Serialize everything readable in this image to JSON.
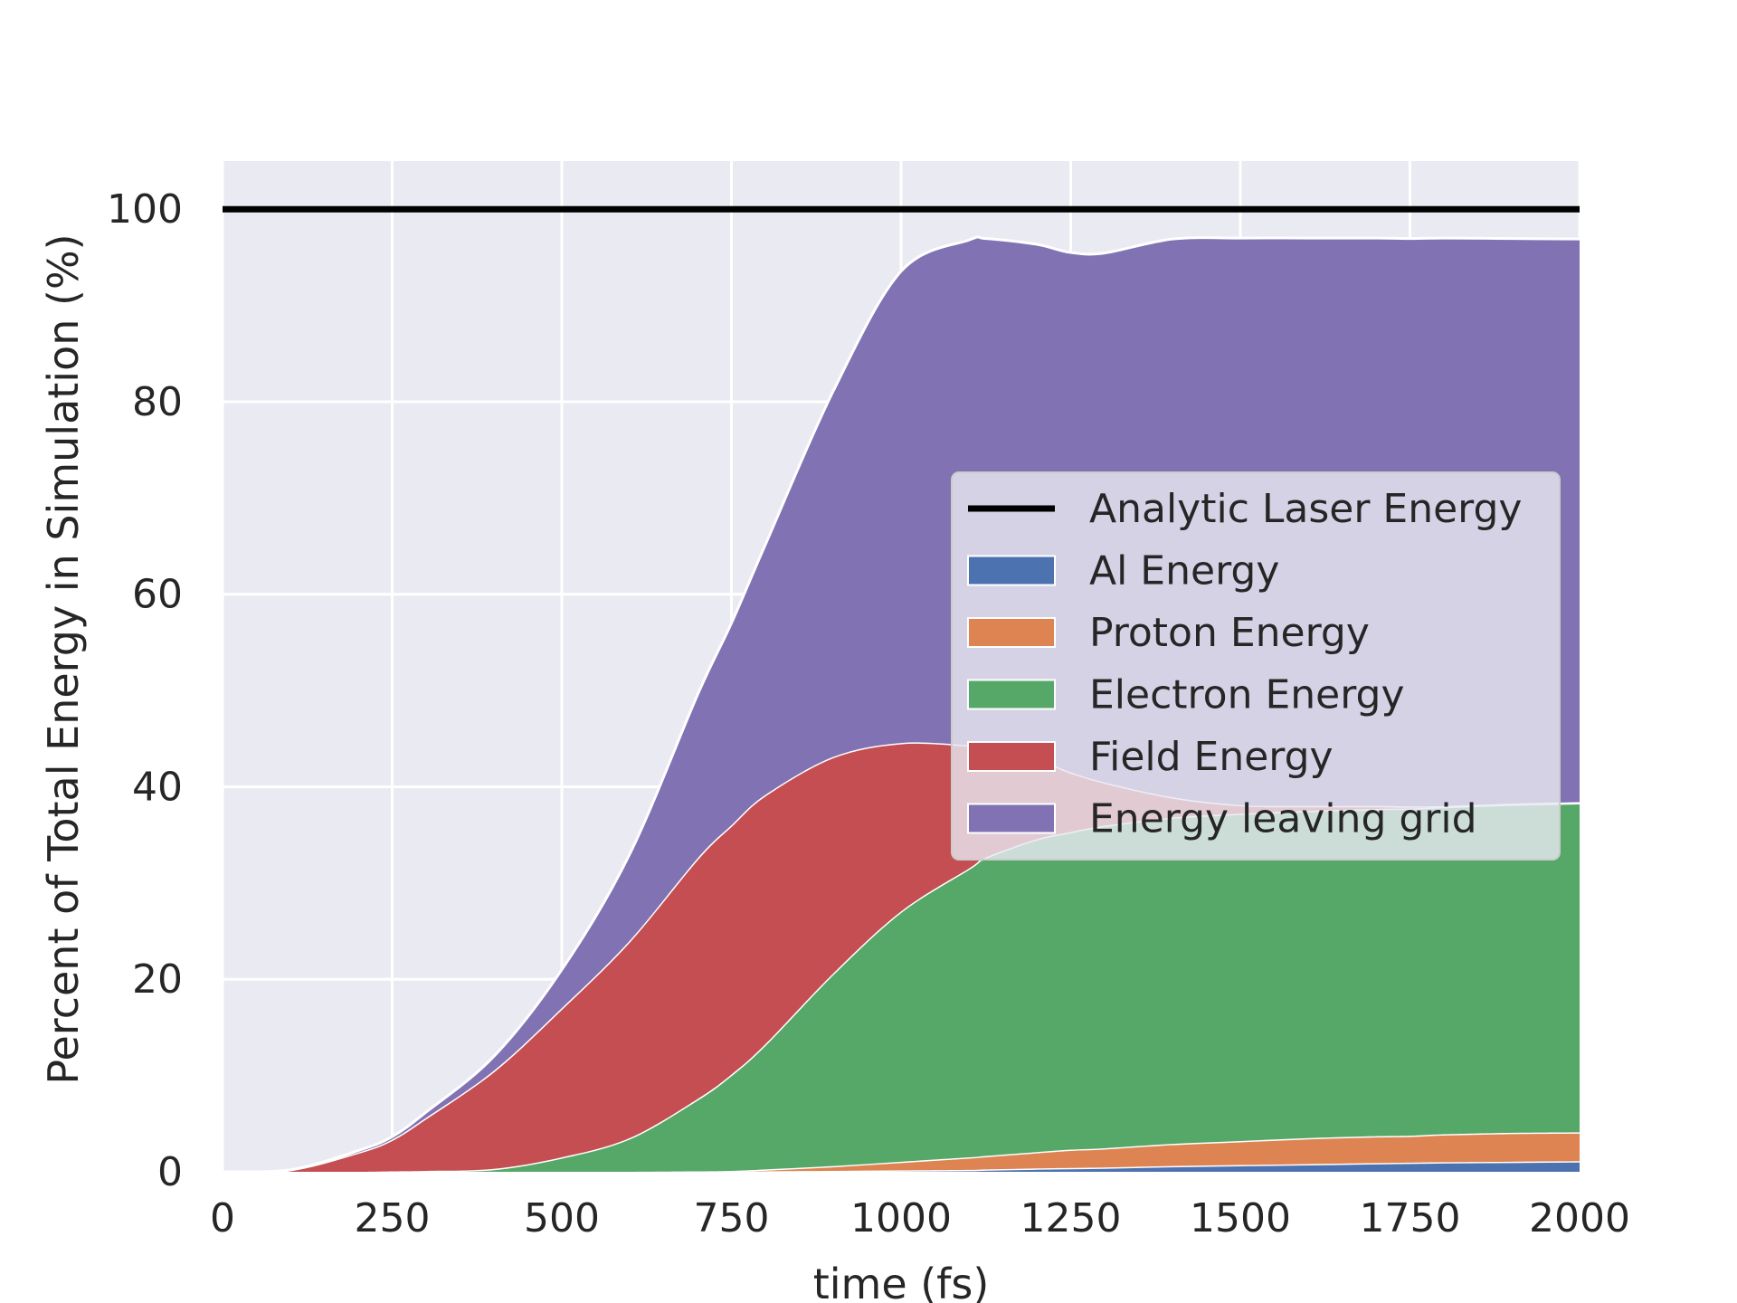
{
  "chart_data": {
    "type": "area",
    "xlabel": "time (fs)",
    "ylabel": "Percent of Total Energy in Simulation (%)",
    "xlim": [
      0,
      2000
    ],
    "ylim": [
      0,
      105
    ],
    "x_ticks": [
      0,
      250,
      500,
      750,
      1000,
      1250,
      1500,
      1750,
      2000
    ],
    "y_ticks": [
      0,
      20,
      40,
      60,
      80,
      100
    ],
    "grid": true,
    "legend_position": "center-right",
    "x": [
      0,
      100,
      200,
      250,
      300,
      400,
      500,
      600,
      700,
      750,
      800,
      900,
      1000,
      1100,
      1125,
      1200,
      1250,
      1300,
      1400,
      1500,
      1600,
      1700,
      1750,
      1800,
      1900,
      2000
    ],
    "reference_line": {
      "name": "Analytic Laser Energy",
      "value": 100,
      "color": "#000000"
    },
    "series": [
      {
        "name": "Al Energy",
        "color": "#4c72b0",
        "values": [
          0,
          0,
          0,
          0,
          0,
          0,
          0,
          0,
          0,
          0,
          0.05,
          0.1,
          0.15,
          0.2,
          0.25,
          0.35,
          0.4,
          0.45,
          0.6,
          0.7,
          0.8,
          0.9,
          0.95,
          1.0,
          1.05,
          1.1
        ]
      },
      {
        "name": "Proton Energy",
        "color": "#dd8452",
        "values": [
          0,
          0,
          0,
          0,
          0,
          0,
          0,
          0,
          0.05,
          0.1,
          0.2,
          0.5,
          0.9,
          1.3,
          1.4,
          1.7,
          1.9,
          2.0,
          2.3,
          2.5,
          2.7,
          2.8,
          2.8,
          2.9,
          3.0,
          3.0
        ]
      },
      {
        "name": "Electron Energy",
        "color": "#55a868",
        "values": [
          0,
          0,
          0,
          0.05,
          0.1,
          0.3,
          1.5,
          3.5,
          7.5,
          10.0,
          13.0,
          20.0,
          26.0,
          30.0,
          31.0,
          32.5,
          33.0,
          33.5,
          33.9,
          34.0,
          34.0,
          34.0,
          34.0,
          34.0,
          34.1,
          34.2
        ]
      },
      {
        "name": "Field Energy",
        "color": "#c44e52",
        "values": [
          0,
          0.2,
          2.0,
          3.3,
          5.5,
          10.2,
          15.5,
          20.5,
          25.0,
          25.9,
          25.9,
          22.5,
          17.5,
          12.8,
          11.3,
          8.3,
          6.2,
          4.5,
          2.1,
          0.9,
          0.5,
          0.3,
          0.2,
          0.1,
          0.1,
          0.1
        ]
      },
      {
        "name": "Energy leaving grid",
        "color": "#8172b3",
        "values": [
          0,
          0,
          0.2,
          0.3,
          0.6,
          1.5,
          4.0,
          9.0,
          17.0,
          21.0,
          26.0,
          38.0,
          49.0,
          52.5,
          53.0,
          53.5,
          54.0,
          55.0,
          58.0,
          58.9,
          59.0,
          59.0,
          59.0,
          59.0,
          58.7,
          58.5
        ]
      }
    ]
  }
}
